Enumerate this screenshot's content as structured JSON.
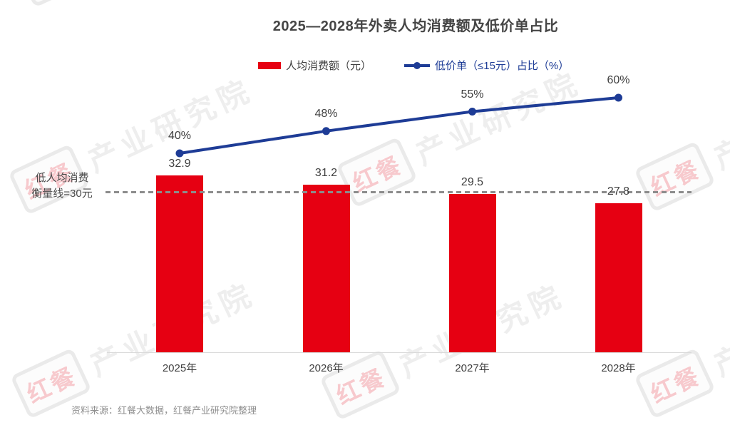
{
  "title": "2025—2028年外卖人均消费额及低价单占比",
  "legend": {
    "bar_label": "人均消费额（元）",
    "line_label": "低价单（≤15元）占比（%）"
  },
  "annotation": {
    "line1": "低人均消费",
    "line2": "衡量线=30元"
  },
  "source": "资料来源：红餐大数据，红餐产业研究院整理",
  "watermark": {
    "logo": "红餐",
    "text": "产业研究院"
  },
  "colors": {
    "bar": "#e60012",
    "line": "#1e3c96",
    "line_label_text": "#1e3c96",
    "reference_dash": "#8c8c8c",
    "axis": "#d9d9d9"
  },
  "chart_data": {
    "type": "bar+line",
    "title": "2025—2028年外卖人均消费额及低价单占比",
    "categories": [
      "2025年",
      "2026年",
      "2027年",
      "2028年"
    ],
    "series": [
      {
        "name": "人均消费额（元）",
        "type": "bar",
        "values": [
          32.9,
          31.2,
          29.5,
          27.8
        ],
        "labels": [
          "32.9",
          "31.2",
          "29.5",
          "27.8"
        ],
        "color": "#e60012"
      },
      {
        "name": "低价单（≤15元）占比（%）",
        "type": "line",
        "values": [
          40,
          48,
          55,
          60
        ],
        "labels": [
          "40%",
          "48%",
          "55%",
          "60%"
        ],
        "color": "#1e3c96"
      }
    ],
    "reference_line": {
      "value": 30,
      "label": "低人均消费 衡量线=30元"
    },
    "xlabel": "",
    "ylabel": "",
    "grid": false,
    "legend_position": "top"
  }
}
